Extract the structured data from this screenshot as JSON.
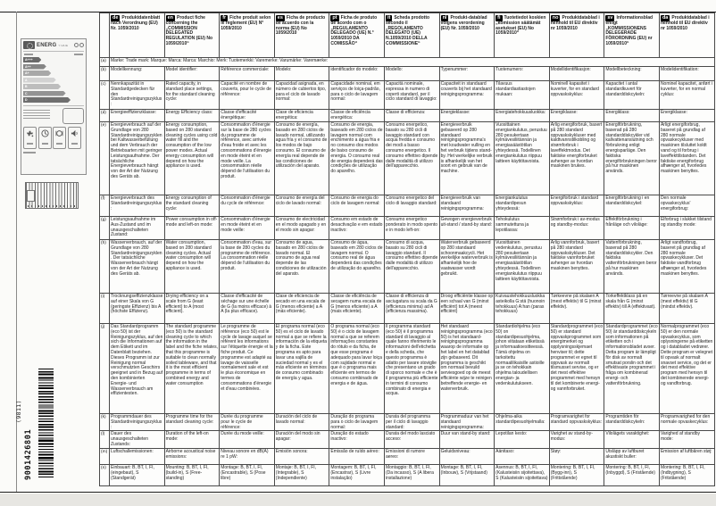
{
  "document": {
    "barcode_number": "9001426801",
    "barcode_suffix": "(9811)"
  },
  "energy_label": {
    "logo_text": "ENERG",
    "logo_suffix": "Y IJA IE",
    "classes": [
      "A+++",
      "A++",
      "A+",
      "A",
      "B",
      "C",
      "D"
    ],
    "bar_colors": [
      "#6a6a6a",
      "#858585",
      "#a8a8a8",
      "#d2d2d2",
      "#bdbdbd",
      "#939393",
      "#6f6f6f"
    ],
    "icons": [
      "water-tap-icon",
      "clock-icon",
      "place-setting-icon",
      "noise-icon"
    ]
  },
  "table": {
    "languages": [
      {
        "code": "de",
        "title": "Produktdatenblatt nach Verordnung (EU) Nr. 1059/2010"
      },
      {
        "code": "en",
        "title": "Product fiche concerning the „COMMISSION DELEGATED REGULATION (EU) No 1059/2010“"
      },
      {
        "code": "fr",
        "title": "Fiche produit selon le règlement (EU) N° 1059/2010"
      },
      {
        "code": "es",
        "title": "Ficha de producto de acuerdo con la norma (EU) No 1059/2010"
      },
      {
        "code": "pt",
        "title": "Ficha de produto de acordo com o „REGULAMENTO DELEGADO (UE) N.° 1059/2010 DA COMISSÃO“"
      },
      {
        "code": "it",
        "title": "Scheda prodotto secondo il „REGOLAMENTO DELEGATO (UE) N.1059/2010 DELLA COMMISSIONE“"
      },
      {
        "code": "nl",
        "title": "Produkt-datablad volgens verordening (EU) Nr. 1059/2010"
      },
      {
        "code": "fi",
        "title": "Tuotetiedot koskien „komission säätämät asetukset (EU) No 1059/2010“"
      },
      {
        "code": "no",
        "title": "Produktdatablad i henhold til EU direktiv nr 1059/2010"
      },
      {
        "code": "sv",
        "title": "Informationsblad enligt „KOMMISSIONENS DELEGERADE FÖRORDNING (EU) nr 1059/2010“"
      },
      {
        "code": "da",
        "title": "Produktdatablad i henhold til EU direktiv nr 1059/2010"
      }
    ],
    "rows": [
      {
        "label": "(a)",
        "span": "Marke: Trade mark: Marque: Marca: Marca: Marchio: Merk: Tuotemerkki: Varemerke: Varumärke: Varemærke:"
      },
      {
        "label": "(b)",
        "cells": [
          "Modellkennung:",
          "Model identifier:",
          "Référence commerciale:",
          "Modelo:",
          "identificador do modelo:",
          "Modello:",
          "Typenummer:",
          "Tuotenumero:",
          "Modellidentifikasjon:",
          "Modellbeteckning:",
          "Modelidentifikation:"
        ]
      },
      {
        "label": "(c)",
        "cells": [
          "Nennkapazität in Standardgedecken für den Standardreinigungszyklus:",
          "Rated capacity, in standard place settings, for the standard cleaning cycle:",
          "Capacité en nombre de couverts, pour le cycle de référence:",
          "Capacidad asignada, en número de cubiertos tipo, para el ciclo de lavado normal:",
          "Capacidade nominal, em serviços de loiça-padrão, para o ciclo de lavagem normal:",
          "Capacità nominale, espressa in numero di coperti standard, per il ciclo standard di lavaggio:",
          "Capaciteit in standaard couverts bij het standaard reinigingsprogramma:",
          "Tilavuus standardiastiastojen mukaan:",
          "Nominell kapasitet i kuverter, for en standard oppvaskskyklus:",
          "Kapacitet i antal standardkuvert för standarddiskcykeln:",
          "Nominel kapacitet, anført i kuverter, for en normal cyklus:"
        ]
      },
      {
        "label": "(d)",
        "cells": [
          "Energieeffizienzklasse:",
          "Energy Efficiency class:",
          "Classe d'efficacité énergétique:",
          "Clase de eficiencia energética:",
          "Classe de eficiência energética:",
          "Classe di efficienza:",
          "Energieklasse:",
          "Energiatehokkuusluokka:",
          "Energiklasse:",
          "Energiklass:",
          "Energiklasse:"
        ]
      },
      {
        "label": "(e)",
        "cells": [
          "Energieverbrauch auf der Grundlage von 280 Standardreinigungszyklen bei Kaltwasserbefüllung und dem Verbrauch der Betriebsarten mit geringer Leistungsaufnahme. Der tatsächliche Energieverbrauch hängt von der Art der Nutzung des Geräts ab.",
          "Energy consumption, based on 280 standard cleaning cycles using cold water fill and the consumption of the low power modes. Actual energy consumption will depend on how the appliance is used.",
          "Consommation d'énergie sur la base de 280 cycles du programme de référence, avec arrivée d'eau froide et avec les consommations d'énergie en mode éteint et en mode veille. La consommation réelle dépend de l'utilisation du produit.",
          "Consumo de energía, basado en 280 ciclos de lavado normal, utilizando agua fría y el consumo de los modos de bajo consumo. El consumo de energía real depende de las condiciones de utilización del aparato.",
          "Consumo de energia, baseado em 280 ciclos de lavagem normal com enchimento a água fria e no consumo dos modos de baixo consumo de energia. O consumo real de energia dependerá das condições de utilização do aparelho.",
          "Consumo energetico, basato su 280 cicli di lavaggio standard con acqua fredda e consumo dei modi a basso consumo energetico. Il consumo effettivo dipende dalle modalità di utilizzo dell'apparecchio.",
          "Energieverbruik gebaseerd op 280 standaard reinigingsprogramma's met koudwater vulling en het verbruik tijdens stand-by. Het werkelijke verbruik is afhankelijk van het soort en gebruik van de machine.",
          "Vuosittainen energiankulutus, perustuu 280 pesukertaan kylmävesiliitännän ja energiasäästötilan yhteydessä. Todellinen energiankulutus riippuu laitteen käyttötavoista.",
          "Årlig energiforbruk, basert på 280 standard oppvaskskykluser med kaldtvannstilkobling og strømforbruk i laveffektmodus. Det faktiske energiforbruket avhenger av hvordan maskinen brukes.",
          "Energiförbrukning, baserad på 280 standarddiskcykler vid kallvattenanslutning och förbrukning enligt energisparläge. Den faktiska energiförbrukningen beror på hur maskinen används.",
          "Årligt energiforbrug, baseret på grundlag af 280 normale opvaskecykluser med maskinen tilsluttet koldt vand og til forbrug i laveffekttilstanden. Det faktiske energiforbrug afhænger af, hvorledes maskinen benyttes."
        ]
      },
      {
        "label": "(f)",
        "cells": [
          "Energieverbrauch des Standardreinigungszyklus:",
          "Energy consumption of the standard cleaning cycle:",
          "Consommation d'énergie du cycle de référence:",
          "Consumo de energía del ciclo de lavado normal:",
          "Consumo de energia do ciclo de lavagem normal:",
          "Consumo energetico del ciclo di lavaggio standard:",
          "Energieverbruik van standaard reinigingsprogramma:",
          "Energiankulutus standardipesun yhteydessä:",
          "Energiforbruk i standard oppvaskskyklus:",
          "Energiförbrukning i en standarddiskcykel:",
          "Den normale opvaskecyklus' energiforbrug:"
        ]
      },
      {
        "label": "(g)",
        "cells": [
          "Leistungsaufnahme im Aus-Zustand und im unausgeschalteten Zustand:",
          "Power consumption in off-mode and left-on mode:",
          "Consommation d'énergie en mode éteint et en mode veille:",
          "Consumo de electricidad en el modo apagado y en el modo sin apagar:",
          "Consumo em estado de desactivação e em estado inactivo:",
          "Consumo energetico ponderato in modo spento e in modo left-on:",
          "Gewogen energieverbruik uit-stand / stand-by stand:",
          "Tehokulutus sammutettuna ja lepotilassa:",
          "Strømforbruk i av-modus og standby-modus:",
          "Effektförbrukning i frånläge och viloläge:",
          "Elforbrug i slukket tilstand og standby mode:"
        ]
      },
      {
        "label": "(h)",
        "cells": [
          "Wasserverbrauch, auf der Grundlage von 280 Standardreinigungszyklen. Der tatsächliche Wasserverbrauch hängt von der Art der Nutzung des Geräts ab.",
          "Water consumption, based on 280 standard cleaning cycles. Actual water consumption will depend on how the appliance is used.",
          "Consommation d'eau, sur la base de 280 cycles du programme de référence. La consommation réelle dépend de l'utilisation du produit.",
          "Consumo de agua, basado en 280 ciclos de lavado normal. El consumo de agua real depende de las condiciones de utilización del aparato.",
          "Consumo de água, baseado em 280 ciclos de lavagem normal. O consumo real de água dependerá das condições de utilização do aparelho.",
          "Consumo di acqua, basato su 280 cicli di lavaggio standard. Il consumo effettivo dipende dalle modalità di utilizzo dell'apparecchio.",
          "Waterverbruik gebaseerd op 280 standaard schoonmaakcycli. Het werkelijke waterverbruik is afhankelijk hoe de vaatwasser wordt gebruikt.",
          "Vuosittainen vedenkulutus, perustuu 280 pesukertaan kylmävesiliitännän ja energiasäästötilan yhteydessä. Todellinen energiankulutus riippuu laitteen käyttötavoista.",
          "Årlig vannforbruk, basert på 280 standard oppvaskskykluser. Det faktiske vannforbruket avhenger av hvordan maskinen benyttes.",
          "Vattenförbrukning, baserad på 280 standarddiskcykler. Den faktiska vattenförbrukningen beror på hur maskinen används.",
          "Årligt vandforbrug, baseret på grundlag af 280 normale opvaskecykluser. Det faktiske vandforbrug afhænger af, hvorledes maskinen benyttes."
        ]
      },
      {
        "label": "(i)",
        "cells": [
          "Trocknungseffizienzklasse auf einer Skala von G (geringste Effizienz) bis A (höchste Effizienz).",
          "Drying efficiency on a scale from G (least efficient) to A (most efficient).",
          "Classe d'efficacité de séchage sur une échelle de G (la moins efficace) à A (la plus efficace).",
          "Clase de eficiencia de secado en una escala de G (menos eficiente) a A (más eficiente).",
          "Classe de eficiência de secagem numa escala de G (menos eficiente) a A (mais eficiente).",
          "Classe di efficienza di asciugatura su scala da G (efficienza minima) ad A (efficienza massima).",
          "Droog efficiëntie klasse op een schaal van G (minst efficiënt) tot A (meest efficiënt)",
          "Kuivaustehokkuusluokka asteikolla G:stä (huonoin tehokkuus) A:han (paras tehokkuus)",
          "Tørkeevne på skalaen A (mest effektiv) til G (minst effektiv).",
          "Torkeffektklass på en skala från G (minst effektiv) till A (effektivast).",
          "Tørreevne på skalaen A (mest effektiv) til G (mindst effektiv)."
        ]
      },
      {
        "label": "(j)",
        "cells": [
          "Das Standardprogramm (eco 50) ist der Reinigungszyklus, auf den sich die Informationen auf dem Etikett und im Datenblatt beziehen. Dieses Programm ist zur Reinigung normal verschmutzten Geschirrs geeignet und in Bezug auf den kombinierten Energie- und Wasserverbrauch am effizientesten.",
          "The standard programme (eco 50) is the standard cleaning cycle to which the information in the label and the fiche relates, that this programme is suitable to clean normally soiled tableware, and that it is the most efficient programme in terms of combined energy and water consumption",
          "Le programme de référence (eco 50) est le cycle de lavage auquel se réfèrent les informations sur l'étiquette énergie et la fiche produit. Ce programme est adapté au lavage de vaisselle normalement sale et est le plus économique en termes de consommations d'énergie et d'eau combinées.",
          "El programa normal (eco 50) es el ciclo de lavado normal a que se refiere la información de la etiqueta y de la ficha. Este programa es apto para lavar una vajilla de suciedad normal y es el más eficiente en términos de consumo combinado de energía y agua.",
          "O programa normal (eco 50) é o ciclo de lavagem normal a que se referem informações constantes do rótulo e da ficha, de que esse programa é adequado para lavar loiça com sujidade normal e que é o programa mais eficiente em termos de consumo combinado de energia e de água.",
          "Il programma standard (eco 50) è il programma standard di lavaggio al quale fanno riferimento le informazioni dell'etichetta e della scheda, che questo programma è adatto per lavare stoviglie che presentano un grado di sporco normale e che è il programma più efficiente in termini di consumo combinato di energia e acqua.",
          "Het standaard reinigingsprogramma (eco 50) is het standaard-reinigingsprogramma waarop de informatie op het label en het datablad zijn gebaseerd. Dit programma is geschikt om normaal bevuild serviesgoed op de meest efficiënte wijze te reinigen betreffende energie- en waterverbruik.",
          "Standardiohjelma (eco 50) on standardipesuohjelma, johon viitataan etiketissä ja informaatioesitteessä. Tämä ohjelma on tarkoitettu normaalilikaisille astioille ja se on tehokkain ohjelma taloudellisen energian- ja vedenkulutukseen.",
          "Standardprogrammet (eco 50) er standard oppvaskprogrammet som energimerket og opplysningsskjemaet henviser til; dette programmet er egnet til oppvask av normalt tilsmusset servise, og er det mest effektive programmet med hensyn til det kombinerte energi- og vannforbruket.",
          "Standardprogrammet (eco 50) är standarddiskcykeln som informationen på etiketten och i informationsbladet avser. Detta program är lämpligt för disk av normalt smutsat porslin och det effektivaste programmet i fråga om kombinerad energi- och vattenförbrukning.",
          "Normalprogrammet (eco 50) er den normale opvaskecyklus, som oplysningerne på etiketten og i databladet vedrører. Dette program er velegnet til opvask af normalt snavset service, og det er det mest effektive program med hensyn til det kombinerede energi- og vandforbrug."
        ]
      },
      {
        "label": "(k)",
        "cells": [
          "Programmdauer des Standardreinigungszyklus:",
          "Programme time for the standard cleaning cycle:",
          "Durée du programme pour le cycle de référence:",
          "Duración del ciclo de lavado normal:",
          "Duração do programa para o ciclo de lavagem normal:",
          "Durata del programma per il ciclo di lavaggio standard:",
          "Programmaduur van het standaard reinigingsprogramma:",
          "Ohjelma-aika standardipesuohjelmalla:",
          "Programvarighet for standard oppvaskskyklus:",
          "Programtiden för standarddiskcykeln:",
          "Programvarighed for den normale opvaskecyklus:"
        ]
      },
      {
        "label": "(l)",
        "cells": [
          "Dauer des unausgeschalteten Zustands:",
          "Duration of the left-on mode:",
          "Durée du mode veille:",
          "Duración del modo sin apagar:",
          "Duração do estado inactivo:",
          "Durata del modo lasciato acceso:",
          "Duur van stand-by stand:",
          "Lepotilan kesto:",
          "Varighet av stand-by-modus:",
          "Vilolägets varaktighet:",
          "Varighed af standby mode:"
        ]
      },
      {
        "label": "(m)",
        "cells": [
          "Luftschallemissionen:",
          "Airborne acoustical noise emissions:",
          "Niveau sonore en dB(A) re 1 pW:",
          "Emisión sonora:",
          "Emissão de ruído aéreo:",
          "Emissioni di rumore aereo:",
          "Geluidsniveau:",
          "Äänitaso:",
          "Støy:",
          "Utsläpp av luftburet akustiskt buller:",
          "Emission af luftbåren støj:"
        ]
      },
      {
        "label": "(n)",
        "cells": [
          "Einbauart: B, BT, I, FI, (eingebaut), S (Standgerät)",
          "Mounting: B, BT, I, FI, (build-in), S (Free-standing)",
          "Montage: B, BT, I, FI, (Encastrable), S (Pose libre)",
          "Montaje: B, BT, I, FI, (Integrable), S (Independiente)",
          "Montagem: B, BT, I, FI, (Encastrar), S (Livre instalação)",
          "Montaggio: B, BT, I, FI, (Da incasso), S (A libera installazione)",
          "Montage: B, BT, I, FI, (Inbouw), S (Vrijstaand)",
          "Asennus: B, BT, I, FI, (Kalusteisiin sijoitettava), S (Kalusteisiin sijoitettava)",
          "Montering: B, BT, I, FI, (Bygg-inn), S (Frittstående)",
          "Montering: B, BT, I, FI, (Inbyggd), S (Fristående)",
          "Montering: B, BT, I, FI, (Indbygning), S (Fritstående)"
        ]
      }
    ]
  }
}
